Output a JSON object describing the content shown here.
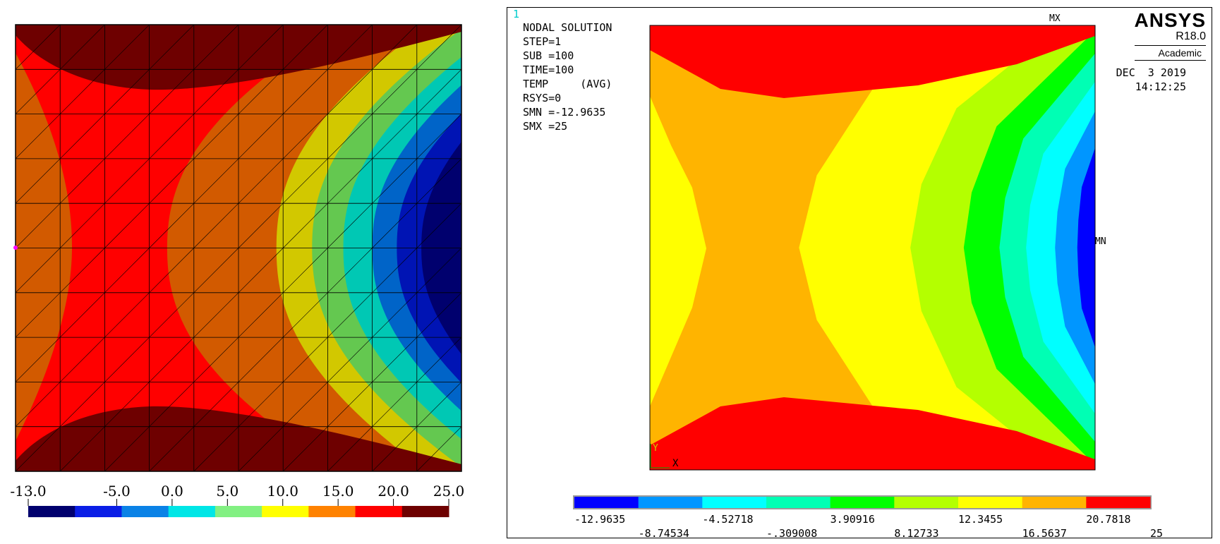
{
  "left_plot": {
    "colorbar_ticks": [
      "-13.0",
      "-5.0",
      "0.0",
      "5.0",
      "10.0",
      "15.0",
      "20.0",
      "25.0"
    ],
    "colorbar_tick_values": [
      -13.0,
      -5.0,
      0.0,
      5.0,
      10.0,
      15.0,
      20.0,
      25.0
    ],
    "colorbar_min": -13.0,
    "colorbar_max": 25.0,
    "colormap": [
      "#00006e",
      "#0a1ee6",
      "#0a82e6",
      "#00e6e6",
      "#82f082",
      "#ffff00",
      "#ff8200",
      "#ff0000",
      "#6e0000"
    ]
  },
  "ansys": {
    "window_number": "1",
    "info": [
      "NODAL SOLUTION",
      "",
      "STEP=1",
      "SUB =100",
      "TIME=100",
      "TEMP     (AVG)",
      "RSYS=0",
      "SMN =-12.9635",
      "SMX =25"
    ],
    "brand": "ANSYS",
    "version": "R18.0",
    "edition": "Academic",
    "date": "DEC  3 2019",
    "time": "14:12:25",
    "mx_label": "MX",
    "mn_label": "MN",
    "axis_y": "Y",
    "axis_x": "X",
    "legend_top": [
      "-12.9635",
      "-4.52718",
      "3.90916",
      "12.3455",
      "20.7818"
    ],
    "legend_bottom": [
      "-8.74534",
      "-.309008",
      "8.12733",
      "16.5637",
      "25"
    ],
    "legend_colors": [
      "#0000ff",
      "#0096ff",
      "#00ffff",
      "#00ffb4",
      "#00ff00",
      "#b4ff00",
      "#ffff00",
      "#ffb400",
      "#ff0000"
    ],
    "contour_colors": [
      "#ff0000",
      "#ffb400",
      "#ffff00",
      "#b4ff00",
      "#00ff00",
      "#00ffb4",
      "#00ffff",
      "#0096ff",
      "#0000ff"
    ]
  }
}
